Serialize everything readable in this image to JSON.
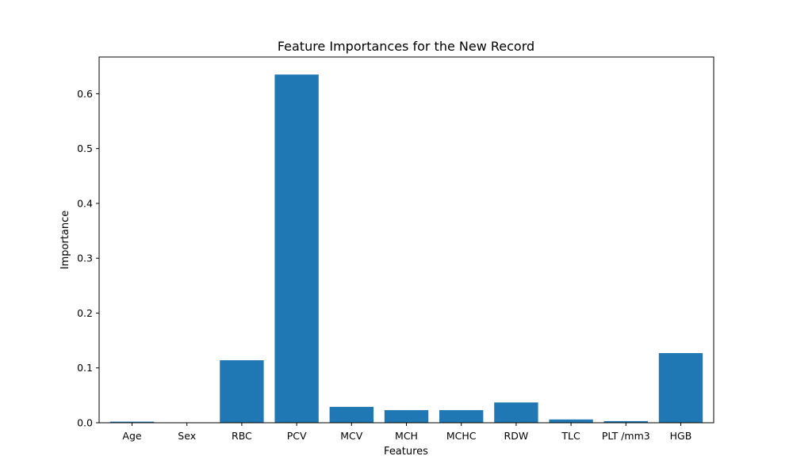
{
  "chart_data": {
    "type": "bar",
    "title": "Feature Importances for the New Record",
    "xlabel": "Features",
    "ylabel": "Importance",
    "categories": [
      "Age",
      "Sex",
      "RBC",
      "PCV",
      "MCV",
      "MCH",
      "MCHC",
      "RDW",
      "TLC",
      "PLT /mm3",
      "HGB"
    ],
    "values": [
      0.002,
      0.0,
      0.114,
      0.635,
      0.029,
      0.023,
      0.023,
      0.037,
      0.006,
      0.003,
      0.127
    ],
    "ylim": [
      0,
      0.667
    ],
    "yticks": [
      0.0,
      0.1,
      0.2,
      0.3,
      0.4,
      0.5,
      0.6
    ],
    "ytick_labels": [
      "0.0",
      "0.1",
      "0.2",
      "0.3",
      "0.4",
      "0.5",
      "0.6"
    ],
    "grid": false,
    "bar_color": "#1f77b4"
  }
}
